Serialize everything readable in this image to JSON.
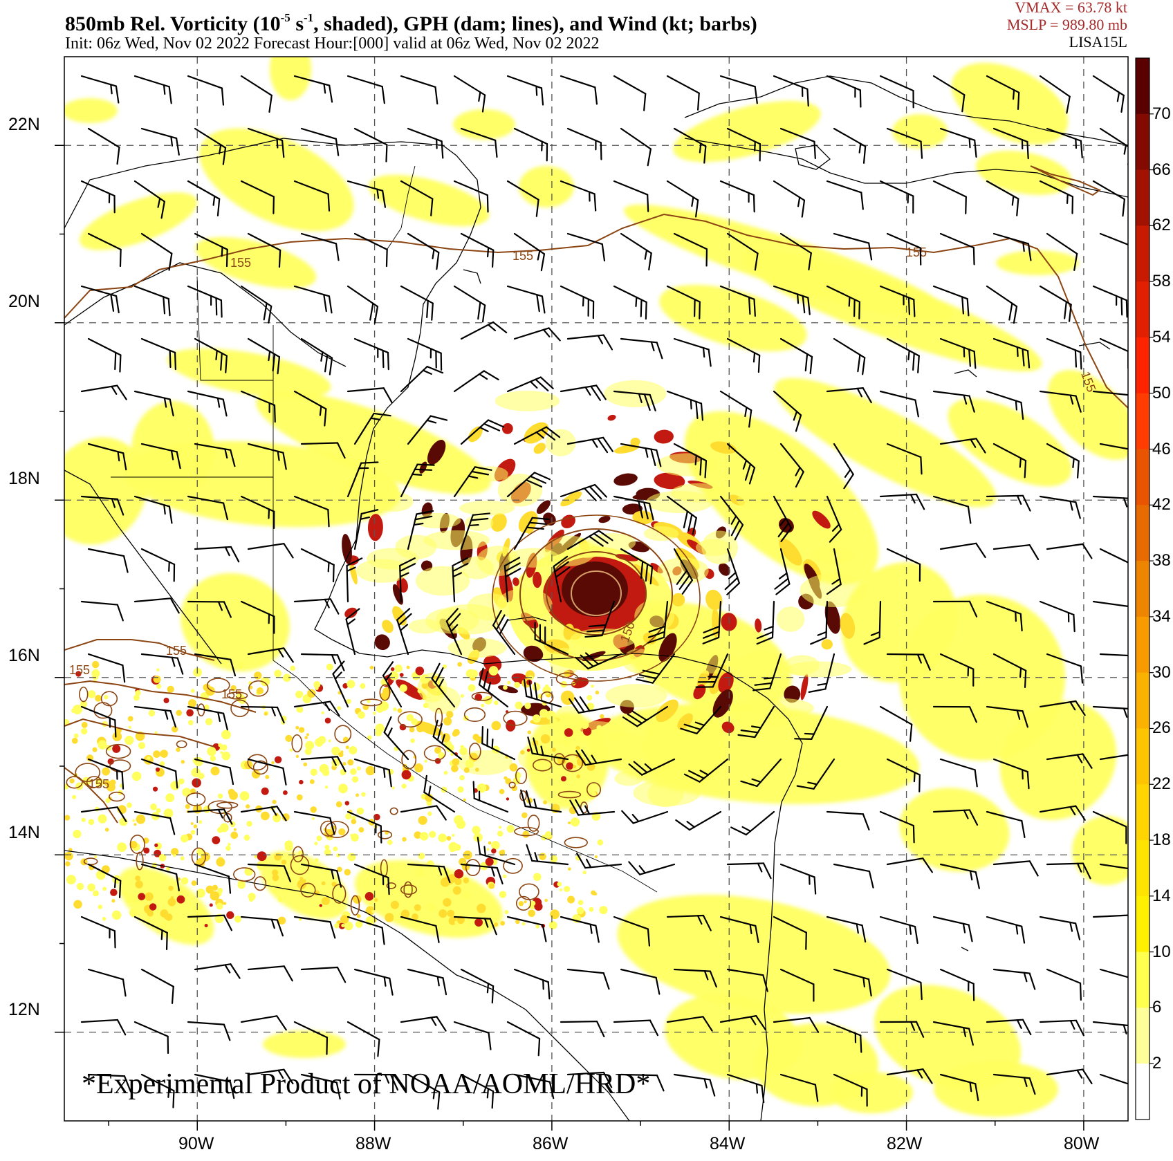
{
  "header": {
    "title_main": "850mb Rel. Vorticity (10",
    "title_exp": "-5",
    "title_unit": " s",
    "title_unit_exp": "-1",
    "title_rest": ", shaded), GPH (dam; lines), and Wind (kt; barbs)",
    "subtitle": "Init: 06z Wed, Nov 02 2022  Forecast Hour:[000]  valid at 06z Wed, Nov 02 2022"
  },
  "storm": {
    "vmax": "VMAX =   63.78 kt",
    "mslp": "MSLP =  989.80 mb",
    "name": "LISA15L"
  },
  "map": {
    "lat_labels": [
      "22N",
      "20N",
      "18N",
      "16N",
      "14N",
      "12N"
    ],
    "lon_labels": [
      "90W",
      "88W",
      "86W",
      "84W",
      "82W",
      "80W"
    ],
    "contour_labels": [
      "155",
      "155",
      "155",
      "155",
      "155",
      "155",
      "155",
      "155",
      "150"
    ],
    "storm_center": {
      "lon": -85.4,
      "lat": 16.9
    },
    "colors": {
      "light_shade": "#ffff60",
      "mid_shade": "#ffdd30",
      "high_shade": "#c21a10",
      "core_shade": "#5a0a04",
      "contour": "#8b4513",
      "coast": "#000000",
      "barb": "#000000"
    }
  },
  "colorbar": {
    "labels": [
      "70",
      "66",
      "62",
      "58",
      "54",
      "50",
      "46",
      "42",
      "38",
      "34",
      "30",
      "26",
      "22",
      "18",
      "14",
      "10",
      "6",
      "2"
    ],
    "colors": [
      "#5a0000",
      "#820a00",
      "#a31200",
      "#c81a00",
      "#e02000",
      "#ff2400",
      "#ff3d00",
      "#e85400",
      "#e76b00",
      "#ee8500",
      "#f79b00",
      "#fbb100",
      "#ffc400",
      "#ffd400",
      "#ffe400",
      "#fff000",
      "#ffff4e",
      "#ffff99",
      "#ffffff"
    ]
  },
  "watermark": "*Experimental Product of NOAA/AOML/HRD*"
}
